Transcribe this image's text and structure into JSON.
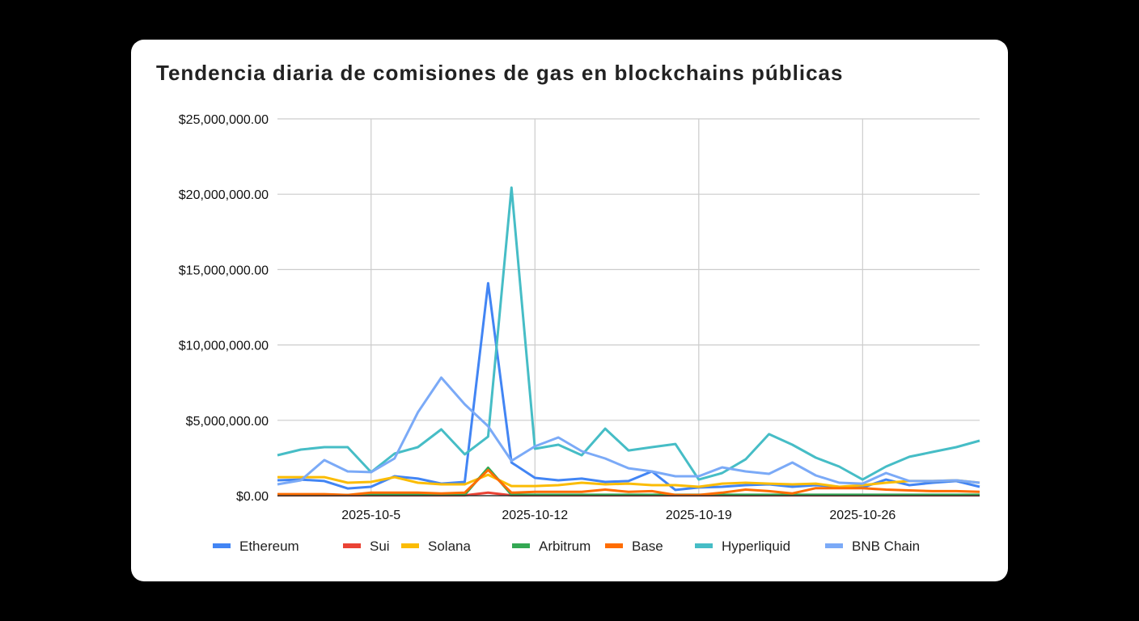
{
  "chart_data": {
    "type": "line",
    "title": "Tendencia diaria de comisiones de gas en blockchains públicas",
    "xlabel": "",
    "ylabel": "",
    "x_start": "2025-10-01",
    "x_end": "2025-10-31",
    "x_ticks": [
      "2025-10-5",
      "2025-10-12",
      "2025-10-19",
      "2025-10-26"
    ],
    "y_ticks": [
      "$0.00",
      "$5,000,000.00",
      "$10,000,000.00",
      "$15,000,000.00",
      "$20,000,000.00",
      "$25,000,000.00"
    ],
    "ylim": [
      0,
      25000000
    ],
    "grid": true,
    "legend": "bottom",
    "series": [
      {
        "name": "Ethereum",
        "color": "#4285f4",
        "values": [
          1.02,
          1.07,
          0.97,
          0.48,
          0.59,
          1.29,
          1.13,
          0.8,
          0.91,
          14.1,
          2.2,
          1.18,
          1.02,
          1.13,
          0.91,
          0.97,
          1.61,
          0.38,
          0.54,
          0.59,
          0.7,
          0.75,
          0.59,
          0.7,
          0.59,
          0.54,
          1.07,
          0.7,
          0.86,
          0.97,
          0.59
        ]
      },
      {
        "name": "Sui",
        "color": "#ea4335",
        "values": [
          0.02,
          0.02,
          0.02,
          0.02,
          0.02,
          0.02,
          0.02,
          0.02,
          0.02,
          0.2,
          0.02,
          0.02,
          0.02,
          0.02,
          0.02,
          0.02,
          0.02,
          0.02,
          0.02,
          0.02,
          0.02,
          0.02,
          0.02,
          0.02,
          0.02,
          0.02,
          0.02,
          0.02,
          0.02,
          0.02,
          0.02
        ]
      },
      {
        "name": "Solana",
        "color": "#fbbc04",
        "values": [
          1.23,
          1.23,
          1.23,
          0.86,
          0.91,
          1.23,
          0.86,
          0.75,
          0.75,
          1.39,
          0.64,
          0.64,
          0.7,
          0.86,
          0.75,
          0.8,
          0.7,
          0.7,
          0.59,
          0.8,
          0.86,
          0.8,
          0.75,
          0.8,
          0.59,
          0.7,
          0.86,
          0.97,
          0.97,
          1.02,
          0.86
        ]
      },
      {
        "name": "Arbitrum",
        "color": "#34a853",
        "values": [
          0.05,
          0.05,
          0.05,
          0.05,
          0.08,
          0.08,
          0.08,
          0.06,
          0.06,
          1.85,
          0.06,
          0.06,
          0.06,
          0.06,
          0.06,
          0.06,
          0.06,
          0.06,
          0.06,
          0.06,
          0.06,
          0.06,
          0.06,
          0.06,
          0.06,
          0.06,
          0.06,
          0.06,
          0.06,
          0.06,
          0.06
        ]
      },
      {
        "name": "Base",
        "color": "#ff6d01",
        "values": [
          0.1,
          0.1,
          0.1,
          0.05,
          0.2,
          0.2,
          0.2,
          0.15,
          0.2,
          1.7,
          0.2,
          0.25,
          0.25,
          0.25,
          0.4,
          0.25,
          0.3,
          0.05,
          0.05,
          0.2,
          0.4,
          0.3,
          0.15,
          0.5,
          0.5,
          0.5,
          0.4,
          0.35,
          0.3,
          0.3,
          0.25
        ]
      },
      {
        "name": "Hyperliquid",
        "color": "#46bdc6",
        "values": [
          2.68,
          3.06,
          3.22,
          3.22,
          1.56,
          2.79,
          3.22,
          4.4,
          2.74,
          3.92,
          20.44,
          3.11,
          3.38,
          2.68,
          4.45,
          3.0,
          3.22,
          3.43,
          1.07,
          1.5,
          2.41,
          4.08,
          3.38,
          2.52,
          1.93,
          1.07,
          1.93,
          2.58,
          2.9,
          3.22,
          3.65
        ]
      },
      {
        "name": "BNB Chain",
        "color": "#7baaf7",
        "values": [
          0.75,
          1.02,
          2.36,
          1.61,
          1.56,
          2.47,
          5.53,
          7.83,
          6.06,
          4.61,
          2.31,
          3.27,
          3.86,
          2.95,
          2.47,
          1.82,
          1.61,
          1.29,
          1.29,
          1.88,
          1.61,
          1.45,
          2.2,
          1.34,
          0.86,
          0.8,
          1.5,
          0.97,
          0.97,
          1.02,
          0.86
        ]
      }
    ],
    "value_unit": "millions USD"
  }
}
